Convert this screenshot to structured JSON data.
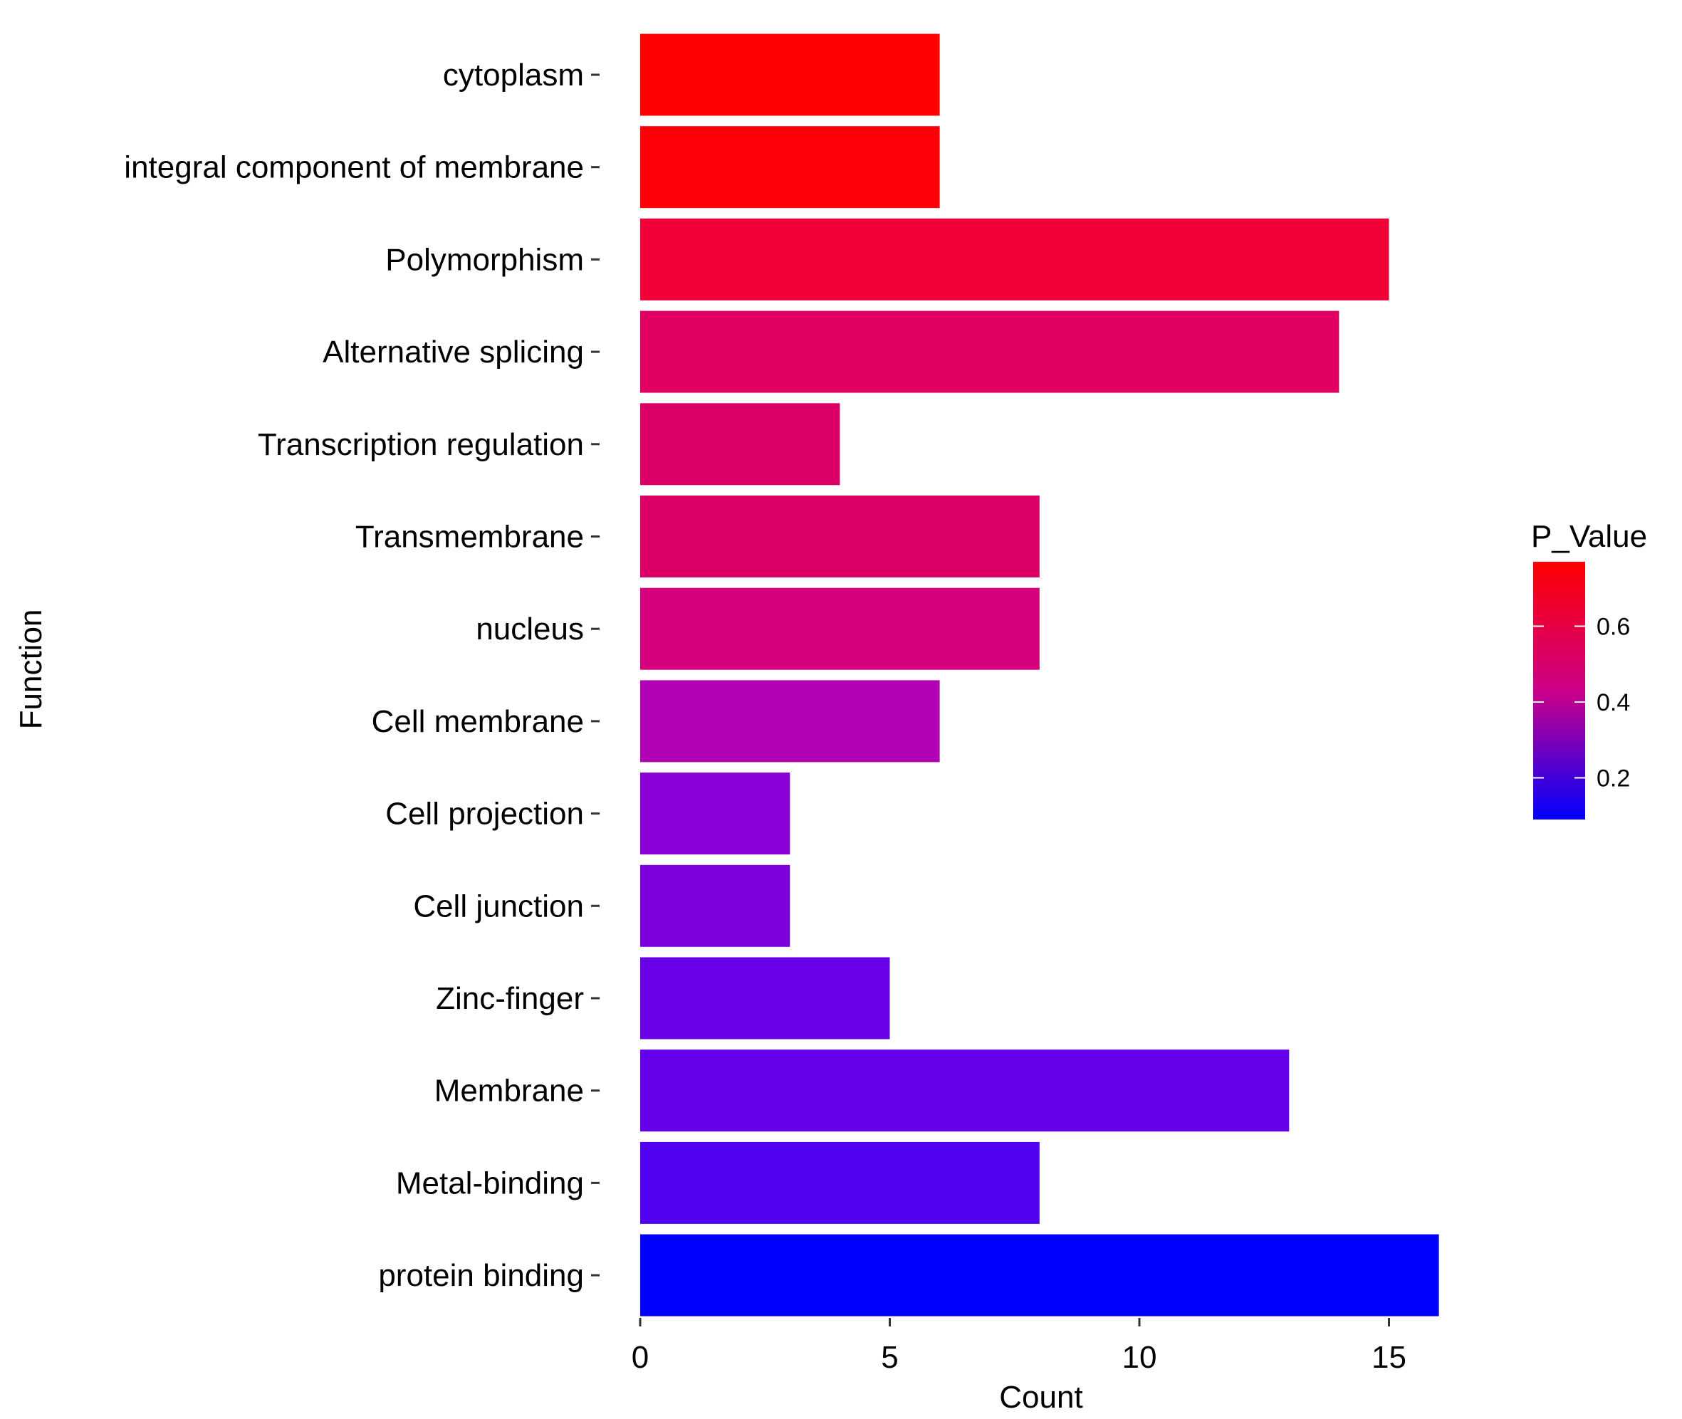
{
  "chart_data": {
    "type": "bar",
    "orientation": "horizontal",
    "xlabel": "Count",
    "ylabel": "Function",
    "xlim": [
      0,
      16.5
    ],
    "xticks": [
      0,
      5,
      10,
      15
    ],
    "grid": false,
    "legend_position": "right",
    "categories": [
      "cytoplasm",
      "integral component of membrane",
      "Polymorphism",
      "Alternative splicing",
      "Transcription regulation",
      "Transmembrane",
      "nucleus",
      "Cell membrane",
      "Cell projection",
      "Cell junction",
      "Zinc-finger",
      "Membrane",
      "Metal-binding",
      "protein binding"
    ],
    "values": [
      6,
      6,
      15,
      14,
      4,
      8,
      8,
      6,
      3,
      3,
      5,
      13,
      8,
      16
    ],
    "colors": [
      "#ff0000",
      "#ff0008",
      "#f20038",
      "#e30063",
      "#dc0066",
      "#dc0066",
      "#d5007c",
      "#b200b4",
      "#8c00d8",
      "#7b00dd",
      "#6a00e8",
      "#6600eb",
      "#5200f0",
      "#0000ff"
    ],
    "legend": {
      "title": "P_Value",
      "gradient_top": "#ff0000",
      "gradient_bottom": "#0000ff",
      "range": [
        0.09,
        0.77
      ],
      "ticks": [
        0.6,
        0.4,
        0.2
      ],
      "tick_labels": [
        "0.6",
        "0.4",
        "0.2"
      ]
    }
  }
}
